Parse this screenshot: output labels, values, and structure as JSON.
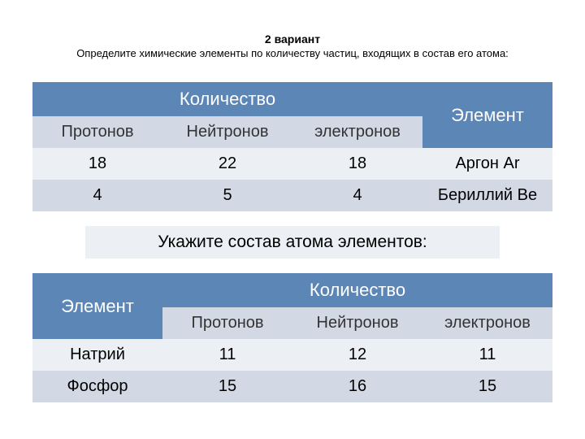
{
  "colors": {
    "header_bg": "#5b86b6",
    "header_fg": "#ffffff",
    "sub_bg": "#d2d9e4",
    "row_even": "#eceff4",
    "row_odd": "#d2d9e4",
    "mid_bg": "#eceff4",
    "page_bg": "#ffffff",
    "text": "#000000"
  },
  "title": "2 вариант",
  "subtitle": "Определите химические элементы по количеству частиц, входящих в состав его атома:",
  "table1": {
    "type": "table",
    "top_headers": {
      "qty": "Количество",
      "el": "Элемент"
    },
    "sub_headers": {
      "p": "Протонов",
      "n": "Нейтронов",
      "e": "электронов"
    },
    "rows": [
      {
        "p": "18",
        "n": "22",
        "e": "18",
        "el": "Аргон Ar"
      },
      {
        "p": "4",
        "n": "5",
        "e": "4",
        "el": "Бериллий Be"
      }
    ],
    "cell_fontsize": 20,
    "header_fontsize": 22
  },
  "middle_caption": "Укажите состав атома элементов:",
  "table2": {
    "type": "table",
    "top_headers": {
      "el": "Элемент",
      "qty": "Количество"
    },
    "sub_headers": {
      "p": "Протонов",
      "n": "Нейтронов",
      "e": "электронов"
    },
    "rows": [
      {
        "el": "Натрий",
        "p": "11",
        "n": "12",
        "e": "11"
      },
      {
        "el": "Фосфор",
        "p": "15",
        "n": "16",
        "e": "15"
      }
    ],
    "cell_fontsize": 20,
    "header_fontsize": 22
  }
}
